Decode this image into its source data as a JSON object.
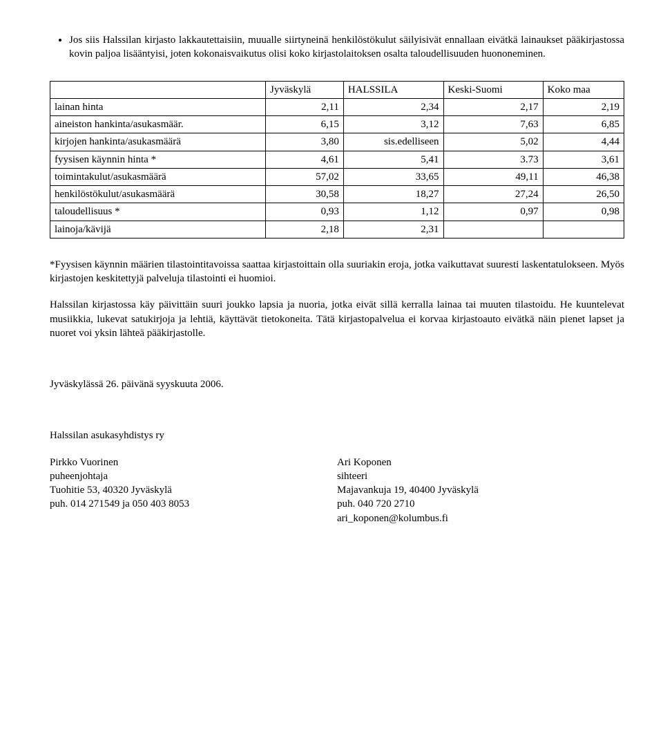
{
  "bullet": "Jos siis Halssilan kirjasto lakkautettaisiin, muualle siirtyneinä henkilöstökulut säilyisivät ennallaan eivätkä lainaukset pääkirjastossa kovin paljoa lisääntyisi, joten kokonaisvaikutus olisi koko kirjastolaitoksen osalta taloudellisuuden huononeminen.",
  "table": {
    "columns": [
      "",
      "Jyväskylä",
      "HALSSILA",
      "Keski-Suomi",
      "Koko maa"
    ],
    "rows": [
      [
        "lainan hinta",
        "2,11",
        "2,34",
        "2,17",
        "2,19"
      ],
      [
        "aineiston hankinta/asukasmäär.",
        "6,15",
        "3,12",
        "7,63",
        "6,85"
      ],
      [
        "kirjojen hankinta/asukasmäärä",
        "3,80",
        "sis.edelliseen",
        "5,02",
        "4,44"
      ],
      [
        "fyysisen käynnin hinta *",
        "4,61",
        "5,41",
        "3.73",
        "3,61"
      ],
      [
        "toimintakulut/asukasmäärä",
        "57,02",
        "33,65",
        "49,11",
        "46,38"
      ],
      [
        "henkilöstökulut/asukasmäärä",
        "30,58",
        "18,27",
        "27,24",
        "26,50"
      ],
      [
        "taloudellisuus *",
        "0,93",
        "1,12",
        "0,97",
        "0,98"
      ],
      [
        "lainoja/kävijä",
        "2,18",
        "2,31",
        "",
        ""
      ]
    ]
  },
  "paras": {
    "p1": "*Fyysisen käynnin määrien tilastointitavoissa saattaa kirjastoittain olla suuriakin eroja, jotka vaikuttavat suuresti laskentatulokseen. Myös kirjastojen keskitettyjä palveluja  tilastointi ei huomioi.",
    "p2": "Halssilan kirjastossa käy päivittäin suuri joukko lapsia ja nuoria, jotka eivät sillä kerralla lainaa tai muuten tilastoidu. He kuuntelevat musiikkia, lukevat satukirjoja ja lehtiä, käyttävät tietokoneita.  Tätä kirjastopalvelua ei korvaa kirjastoauto eivätkä näin pienet lapset ja nuoret voi yksin lähteä pääkirjastolle."
  },
  "dateline": "Jyväskylässä  26. päivänä syyskuuta 2006.",
  "org": "Halssilan asukasyhdistys ry",
  "sig": {
    "left": {
      "name": "Pirkko Vuorinen",
      "role": "puheenjohtaja",
      "addr": "Tuohitie 53, 40320 Jyväskylä",
      "phone": "puh. 014 271549 ja 050 403 8053"
    },
    "right": {
      "name": "Ari Koponen",
      "role": "sihteeri",
      "addr": "Majavankuja 19, 40400 Jyväskylä",
      "phone": "puh. 040 720 2710",
      "email": "ari_koponen@kolumbus.fi"
    }
  }
}
